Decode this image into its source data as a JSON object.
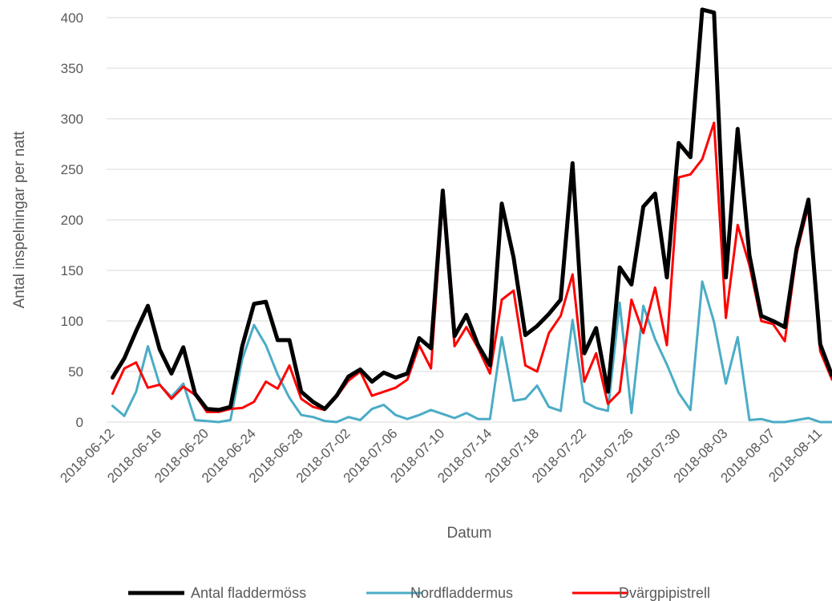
{
  "chart_data": {
    "type": "line",
    "xlabel": "Datum",
    "ylabel": "Antal inspelningar per natt",
    "ylim": [
      0,
      400
    ],
    "yticks": [
      0,
      50,
      100,
      150,
      200,
      250,
      300,
      350,
      400
    ],
    "grid": "horizontal",
    "legend_position": "bottom",
    "x_tick_labels": [
      "2018-06-12",
      "2018-06-16",
      "2018-06-20",
      "2018-06-24",
      "2018-06-28",
      "2018-07-02",
      "2018-07-06",
      "2018-07-10",
      "2018-07-14",
      "2018-07-18",
      "2018-07-22",
      "2018-07-26",
      "2018-07-30",
      "2018-08-03",
      "2018-08-07",
      "2018-08-11"
    ],
    "x": [
      "2018-06-12",
      "2018-06-13",
      "2018-06-14",
      "2018-06-15",
      "2018-06-16",
      "2018-06-17",
      "2018-06-18",
      "2018-06-19",
      "2018-06-20",
      "2018-06-21",
      "2018-06-22",
      "2018-06-23",
      "2018-06-24",
      "2018-06-25",
      "2018-06-26",
      "2018-06-27",
      "2018-06-28",
      "2018-06-29",
      "2018-06-30",
      "2018-07-01",
      "2018-07-02",
      "2018-07-03",
      "2018-07-04",
      "2018-07-05",
      "2018-07-06",
      "2018-07-07",
      "2018-07-08",
      "2018-07-09",
      "2018-07-10",
      "2018-07-11",
      "2018-07-12",
      "2018-07-13",
      "2018-07-14",
      "2018-07-15",
      "2018-07-16",
      "2018-07-17",
      "2018-07-18",
      "2018-07-19",
      "2018-07-20",
      "2018-07-21",
      "2018-07-22",
      "2018-07-23",
      "2018-07-24",
      "2018-07-25",
      "2018-07-26",
      "2018-07-27",
      "2018-07-28",
      "2018-07-29",
      "2018-07-30",
      "2018-07-31",
      "2018-08-01",
      "2018-08-02",
      "2018-08-03",
      "2018-08-04",
      "2018-08-05",
      "2018-08-06",
      "2018-08-07",
      "2018-08-08",
      "2018-08-09",
      "2018-08-10",
      "2018-08-11",
      "2018-08-12"
    ],
    "series": [
      {
        "name": "Antal fladdermöss",
        "color": "#000000",
        "width": 5,
        "values": [
          44,
          63,
          90,
          115,
          72,
          48,
          74,
          28,
          13,
          12,
          15,
          75,
          117,
          119,
          81,
          81,
          30,
          20,
          13,
          26,
          45,
          52,
          40,
          49,
          44,
          48,
          83,
          73,
          229,
          85,
          106,
          76,
          56,
          216,
          163,
          86,
          95,
          107,
          121,
          256,
          68,
          93,
          30,
          153,
          136,
          213,
          226,
          143,
          276,
          262,
          408,
          405,
          143,
          290,
          165,
          105,
          100,
          94,
          172,
          220,
          77,
          46
        ]
      },
      {
        "name": "Nordfladdermus",
        "color": "#4BACC6",
        "width": 3,
        "values": [
          16,
          6,
          30,
          75,
          37,
          25,
          38,
          2,
          1,
          0,
          2,
          62,
          96,
          76,
          47,
          24,
          7,
          5,
          1,
          0,
          5,
          2,
          13,
          17,
          7,
          3,
          7,
          12,
          8,
          4,
          9,
          3,
          3,
          84,
          21,
          23,
          36,
          15,
          11,
          101,
          20,
          14,
          11,
          118,
          9,
          115,
          82,
          57,
          29,
          12,
          139,
          99,
          38,
          84,
          2,
          3,
          0,
          0,
          2,
          4,
          0,
          0
        ]
      },
      {
        "name": "Dvärgpipistrell",
        "color": "#FF0000",
        "width": 3,
        "values": [
          28,
          53,
          59,
          34,
          37,
          23,
          35,
          27,
          10,
          10,
          13,
          14,
          20,
          40,
          33,
          56,
          23,
          15,
          12,
          25,
          41,
          50,
          26,
          30,
          34,
          42,
          76,
          53,
          220,
          75,
          94,
          73,
          48,
          121,
          130,
          56,
          50,
          88,
          105,
          146,
          40,
          68,
          18,
          30,
          121,
          88,
          133,
          76,
          242,
          245,
          260,
          296,
          103,
          195,
          155,
          100,
          97,
          80,
          167,
          214,
          70,
          42
        ]
      }
    ]
  }
}
